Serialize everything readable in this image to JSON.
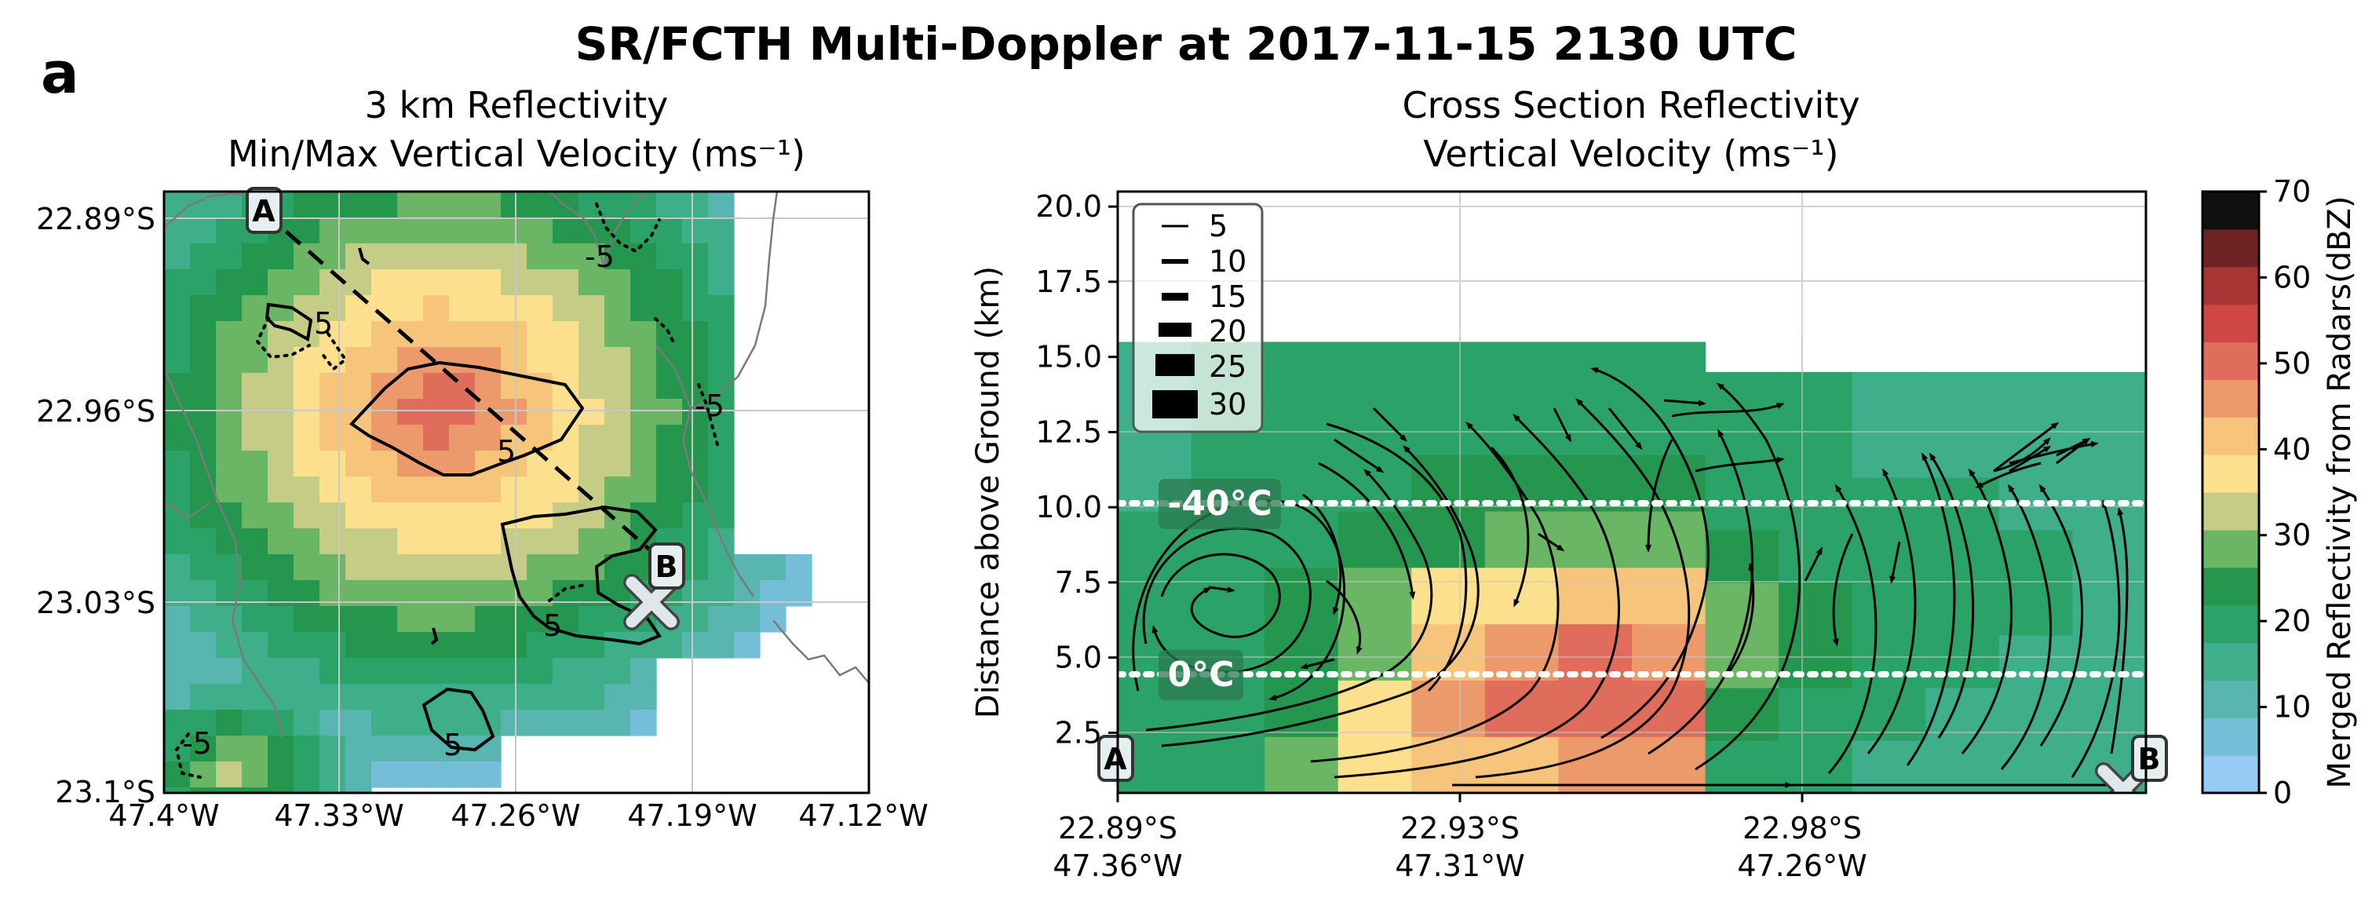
{
  "figure": {
    "panel_label": "a",
    "title": "SR/FCTH Multi-Doppler at 2017-11-15 2130 UTC"
  },
  "chart_data": [
    {
      "type": "heatmap",
      "name": "plan-view",
      "title": "3 km Reflectivity",
      "subtitle": "Min/Max Vertical Velocity (ms⁻¹)",
      "xlabel": "",
      "ylabel": "",
      "x_ticks": [
        "47.4°W",
        "47.33°W",
        "47.26°W",
        "47.19°W",
        "47.12°W"
      ],
      "y_ticks": [
        "22.89°S",
        "22.96°S",
        "23.03°S",
        "23.1°S"
      ],
      "lon_range": [
        -47.4,
        -47.12
      ],
      "lat_range": [
        -23.1,
        -22.88
      ],
      "contour_labels": [
        "5",
        "5",
        "-5",
        "-5",
        "5",
        "-5",
        "5",
        "-5"
      ],
      "markers": [
        {
          "label": "A",
          "lon": -47.36,
          "lat": -22.89
        },
        {
          "label": "B",
          "lon": -47.21,
          "lat": -23.02
        }
      ],
      "radar_site": {
        "lon": -47.21,
        "lat": -23.03
      },
      "reflectivity_center": {
        "lon": -47.29,
        "lat": -22.96,
        "max_dbz": 52
      }
    },
    {
      "type": "heatmap",
      "name": "cross-section",
      "title": "Cross Section Reflectivity",
      "subtitle": "Vertical Velocity (ms⁻¹)",
      "ylabel": "Distance above Ground (km)",
      "ylim": [
        0.5,
        20.5
      ],
      "y_ticks": [
        "2.5",
        "5.0",
        "7.5",
        "10.0",
        "12.5",
        "15.0",
        "17.5",
        "20.0"
      ],
      "x_ticks": [
        {
          "lat": "22.89°S",
          "lon": "47.36°W"
        },
        {
          "lat": "22.93°S",
          "lon": "47.31°W"
        },
        {
          "lat": "22.98°S",
          "lon": "47.26°W"
        }
      ],
      "isotherms": [
        {
          "label": "-40°C",
          "height_km": 10.2
        },
        {
          "label": "0°C",
          "height_km": 4.5
        }
      ],
      "markers": [
        {
          "label": "A"
        },
        {
          "label": "B"
        }
      ],
      "legend": {
        "position": "top-left",
        "entries": [
          "5",
          "10",
          "15",
          "20",
          "25",
          "30"
        ]
      },
      "columns_dbz": [
        [
          20,
          20,
          20,
          20,
          20,
          15,
          15,
          15
        ],
        [
          20,
          20,
          20,
          20,
          20,
          20,
          20,
          20
        ],
        [
          30,
          25,
          25,
          25,
          20,
          20,
          20,
          20
        ],
        [
          35,
          35,
          30,
          30,
          25,
          20,
          20,
          20
        ],
        [
          40,
          45,
          40,
          35,
          25,
          25,
          20,
          20
        ],
        [
          40,
          50,
          45,
          35,
          30,
          25,
          20,
          20
        ],
        [
          45,
          50,
          50,
          40,
          30,
          25,
          20,
          20
        ],
        [
          45,
          50,
          45,
          40,
          30,
          25,
          20,
          20
        ],
        [
          20,
          25,
          30,
          30,
          25,
          20,
          20,
          20
        ],
        [
          20,
          20,
          25,
          25,
          20,
          20,
          20,
          20
        ],
        [
          15,
          20,
          20,
          20,
          20,
          20,
          15,
          15
        ],
        [
          15,
          15,
          20,
          20,
          20,
          20,
          15,
          15
        ],
        [
          15,
          15,
          15,
          20,
          20,
          15,
          15,
          15
        ],
        [
          15,
          15,
          15,
          15,
          15,
          15,
          15,
          15
        ]
      ],
      "echo_top_km": [
        15.5,
        15.5,
        15.5,
        15.5,
        15.5,
        15.5,
        15.5,
        15.5,
        14.5,
        14.5,
        14.5,
        14.5,
        14.5,
        14.5
      ]
    }
  ],
  "colorbar": {
    "label": "Merged Reflectivity from Radars(dBZ)",
    "min": 0,
    "max": 70,
    "ticks": [
      "0",
      "10",
      "20",
      "30",
      "40",
      "50",
      "60",
      "70"
    ],
    "colors": [
      "#97cbf4",
      "#74bed8",
      "#58b5b0",
      "#3fae8a",
      "#2ba368",
      "#24964e",
      "#6ab665",
      "#c4cc86",
      "#fde08e",
      "#f7c47c",
      "#ec9a6b",
      "#e06c5b",
      "#d04545",
      "#a83434",
      "#6e2424",
      "#101010"
    ]
  }
}
